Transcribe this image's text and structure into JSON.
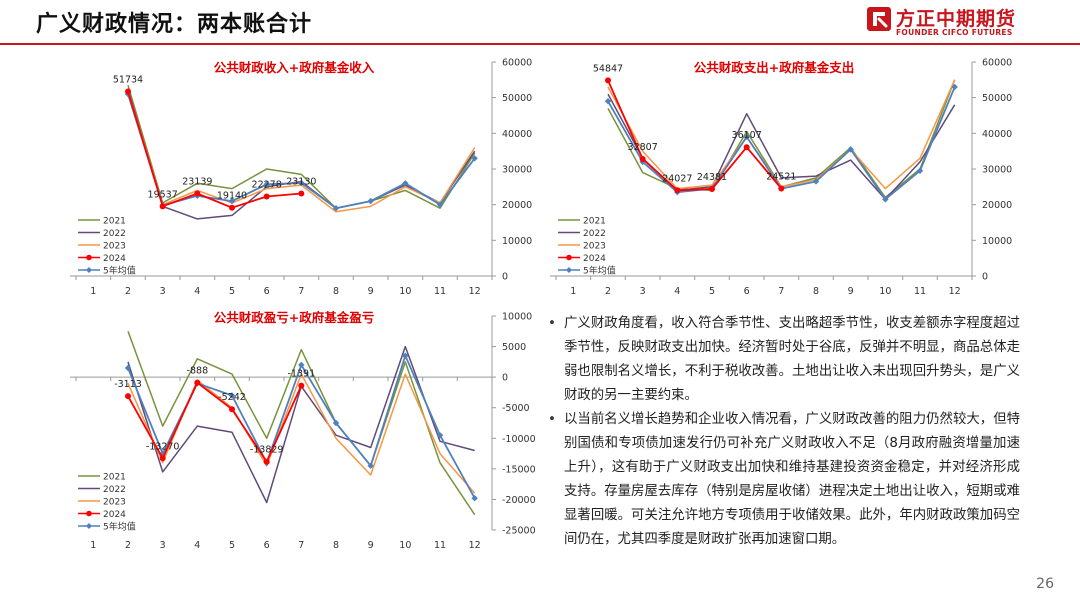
{
  "header": {
    "title": "广义财政情况：两本账合计",
    "logo_cn": "方正中期期货",
    "logo_en": "FOUNDER CIFCO FUTURES"
  },
  "colors": {
    "2021": "#77933c",
    "2022": "#604a7b",
    "2023": "#f79646",
    "2024": "#ff0000",
    "5年均值": "#4f81bd",
    "title_red": "#e00000"
  },
  "chart_data": [
    {
      "type": "line",
      "title": "公共财政收入+政府基金收入",
      "categories": [
        1,
        2,
        3,
        4,
        5,
        6,
        7,
        8,
        9,
        10,
        11,
        12
      ],
      "ylim": [
        0,
        60000
      ],
      "yticks": [
        0,
        10000,
        20000,
        30000,
        40000,
        50000,
        60000
      ],
      "y_axis_side": "right",
      "legend_position": "bottom-left",
      "series": [
        {
          "name": "2021",
          "values": [
            null,
            53500,
            20500,
            26000,
            24500,
            30000,
            28500,
            19000,
            21000,
            24000,
            19000,
            34500
          ]
        },
        {
          "name": "2022",
          "values": [
            null,
            52500,
            19500,
            16000,
            17000,
            25000,
            26500,
            19000,
            21000,
            25500,
            20500,
            35000
          ]
        },
        {
          "name": "2023",
          "values": [
            null,
            52000,
            20000,
            24000,
            20500,
            24500,
            25500,
            18000,
            19500,
            25000,
            20500,
            36000
          ]
        },
        {
          "name": "2024",
          "values": [
            null,
            51734,
            19537,
            23139,
            19140,
            22278,
            23130,
            null,
            null,
            null,
            null,
            null
          ]
        },
        {
          "name": "5年均值",
          "values": [
            null,
            51000,
            19800,
            22500,
            21000,
            25700,
            26100,
            19000,
            21000,
            26000,
            20000,
            33000
          ]
        }
      ],
      "data_labels": [
        {
          "month": 2,
          "value": 51734,
          "text": "51734"
        },
        {
          "month": 3,
          "value": 19537,
          "text": "19537"
        },
        {
          "month": 4,
          "value": 23139,
          "text": "23139"
        },
        {
          "month": 5,
          "value": 19140,
          "text": "19140"
        },
        {
          "month": 6,
          "value": 22278,
          "text": "22278"
        },
        {
          "month": 7,
          "value": 23130,
          "text": "23130"
        }
      ]
    },
    {
      "type": "line",
      "title": "公共财政支出+政府基金支出",
      "categories": [
        1,
        2,
        3,
        4,
        5,
        6,
        7,
        8,
        9,
        10,
        11,
        12
      ],
      "ylim": [
        0,
        60000
      ],
      "yticks": [
        0,
        10000,
        20000,
        30000,
        40000,
        50000,
        60000
      ],
      "y_axis_side": "right",
      "legend_position": "bottom-left",
      "series": [
        {
          "name": "2021",
          "values": [
            null,
            47000,
            29000,
            24500,
            24000,
            40500,
            25000,
            27500,
            36000,
            22000,
            30000,
            55000
          ]
        },
        {
          "name": "2022",
          "values": [
            null,
            51000,
            33000,
            24000,
            25000,
            45500,
            27500,
            28000,
            32500,
            21500,
            32000,
            48000
          ]
        },
        {
          "name": "2023",
          "values": [
            null,
            53000,
            35000,
            24500,
            25500,
            39000,
            25000,
            27000,
            35500,
            24500,
            33000,
            55000
          ]
        },
        {
          "name": "2024",
          "values": [
            null,
            54847,
            32807,
            24027,
            24381,
            36107,
            24521,
            null,
            null,
            null,
            null,
            null
          ]
        },
        {
          "name": "5年均值",
          "values": [
            null,
            49000,
            32000,
            23500,
            24500,
            39000,
            24500,
            26500,
            35500,
            21500,
            29500,
            53000
          ]
        }
      ],
      "data_labels": [
        {
          "month": 2,
          "value": 54847,
          "text": "54847"
        },
        {
          "month": 3,
          "value": 32807,
          "text": "32807"
        },
        {
          "month": 4,
          "value": 24027,
          "text": "24027"
        },
        {
          "month": 5,
          "value": 24381,
          "text": "24381"
        },
        {
          "month": 6,
          "value": 36107,
          "text": "36107"
        },
        {
          "month": 7,
          "value": 24521,
          "text": "24521"
        }
      ]
    },
    {
      "type": "line",
      "title": "公共财政盈亏+政府基金盈亏",
      "categories": [
        1,
        2,
        3,
        4,
        5,
        6,
        7,
        8,
        9,
        10,
        11,
        12
      ],
      "ylim": [
        -25000,
        10000
      ],
      "yticks": [
        -25000,
        -20000,
        -15000,
        -10000,
        -5000,
        0,
        5000,
        10000
      ],
      "y_axis_side": "right",
      "legend_position": "bottom-left",
      "series": [
        {
          "name": "2021",
          "values": [
            null,
            7500,
            -8000,
            3000,
            500,
            -10000,
            4500,
            -7500,
            -14500,
            2500,
            -14000,
            -22500
          ]
        },
        {
          "name": "2022",
          "values": [
            null,
            2500,
            -15500,
            -8000,
            -9000,
            -20500,
            -1500,
            -9500,
            -11500,
            5000,
            -10500,
            -12000
          ]
        },
        {
          "name": "2023",
          "values": [
            null,
            -1000,
            -14000,
            -500,
            -5000,
            -14500,
            500,
            -10000,
            -16000,
            500,
            -12500,
            -19000
          ]
        },
        {
          "name": "2024",
          "values": [
            null,
            -3113,
            -13270,
            -888,
            -5242,
            -13829,
            -1391,
            null,
            null,
            null,
            null,
            null
          ]
        },
        {
          "name": "5年均值",
          "values": [
            null,
            1500,
            -12500,
            -1000,
            -3000,
            -14000,
            2000,
            -7500,
            -14500,
            3500,
            -9500,
            -19800
          ]
        }
      ],
      "data_labels": [
        {
          "month": 2,
          "value": -3113,
          "text": "-3113"
        },
        {
          "month": 3,
          "value": -13270,
          "text": "-13270"
        },
        {
          "month": 4,
          "value": -888,
          "text": "-888"
        },
        {
          "month": 5,
          "value": -5242,
          "text": "-5242"
        },
        {
          "month": 6,
          "value": -13829,
          "text": "-13829"
        },
        {
          "month": 7,
          "value": -1391,
          "text": "-1391"
        }
      ]
    }
  ],
  "bullets": [
    "广义财政角度看，收入符合季节性、支出略超季节性，收支差额赤字程度超过季节性，反映财政支出加快。经济暂时处于谷底，反弹并不明显，商品总体走弱也限制名义增长，不利于税收改善。土地出让收入未出现回升势头，是广义财政的另一主要约束。",
    "以当前名义增长趋势和企业收入情况看，广义财政改善的阻力仍然较大，但特别国债和专项债加速发行仍可补充广义财政收入不足（8月政府融资增量加速上升），这有助于广义财政支出加快和维持基建投资资金稳定，并对经济形成支持。存量房屋去库存（特别是房屋收储）进程决定土地出让收入，短期或难显著回暖。可关注允许地方专项债用于收储效果。此外，年内财政政策加码空间仍在，尤其四季度是财政扩张再加速窗口期。"
  ],
  "page_number": "26"
}
